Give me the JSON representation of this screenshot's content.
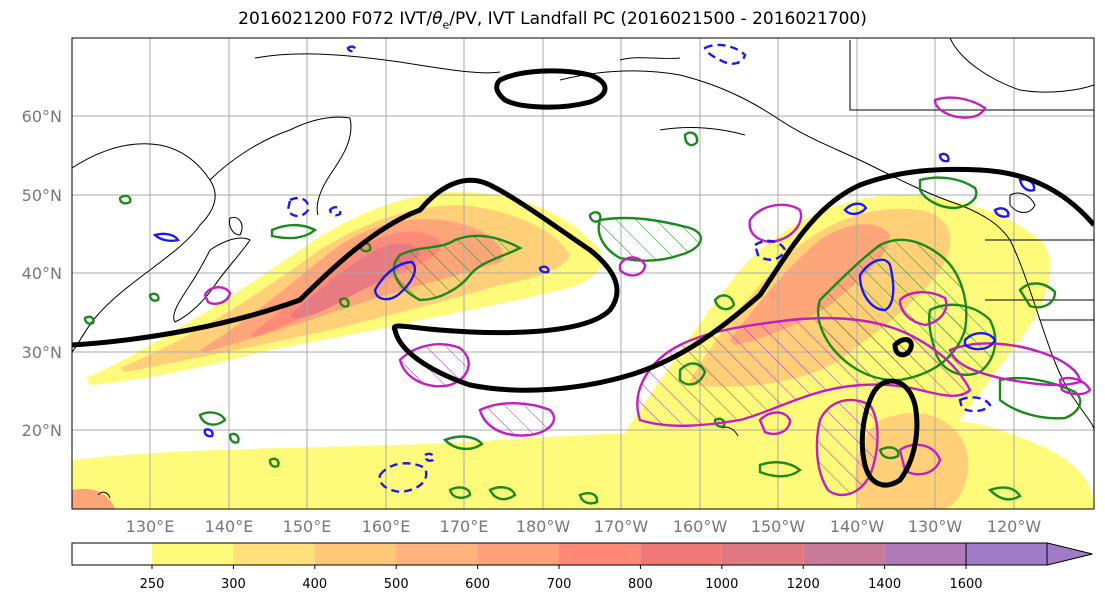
{
  "title": {
    "prefix": "2016021200 F072 IVT/",
    "theta": "θ",
    "sub": "e",
    "suffix": "/PV, IVT Landfall PC (2016021500 - 2016021700)"
  },
  "lat_ticks": [
    "20°N",
    "30°N",
    "40°N",
    "50°N",
    "60°N"
  ],
  "lon_ticks": [
    "130°E",
    "140°E",
    "150°E",
    "160°E",
    "170°E",
    "180°W",
    "170°W",
    "160°W",
    "150°W",
    "140°W",
    "130°W",
    "120°W"
  ],
  "colorbar": {
    "labels": [
      "250",
      "300",
      "400",
      "500",
      "600",
      "700",
      "800",
      "1000",
      "1200",
      "1400",
      "1600"
    ],
    "colors": [
      "#fffb7a",
      "#ffe07a",
      "#ffc877",
      "#ffb27a",
      "#ffa07a",
      "#ff8878",
      "#f07878",
      "#e0787f",
      "#c87a98",
      "#b07ab8",
      "#a07cc8"
    ]
  },
  "colors": {
    "ivt_jet": "#000000",
    "pv": "#1a8a1a",
    "theta_e": "#c020c0",
    "negative": "#1a1aee",
    "coast": "#000000",
    "grid": "#aaaaaa"
  },
  "legend_levels_units": ""
}
